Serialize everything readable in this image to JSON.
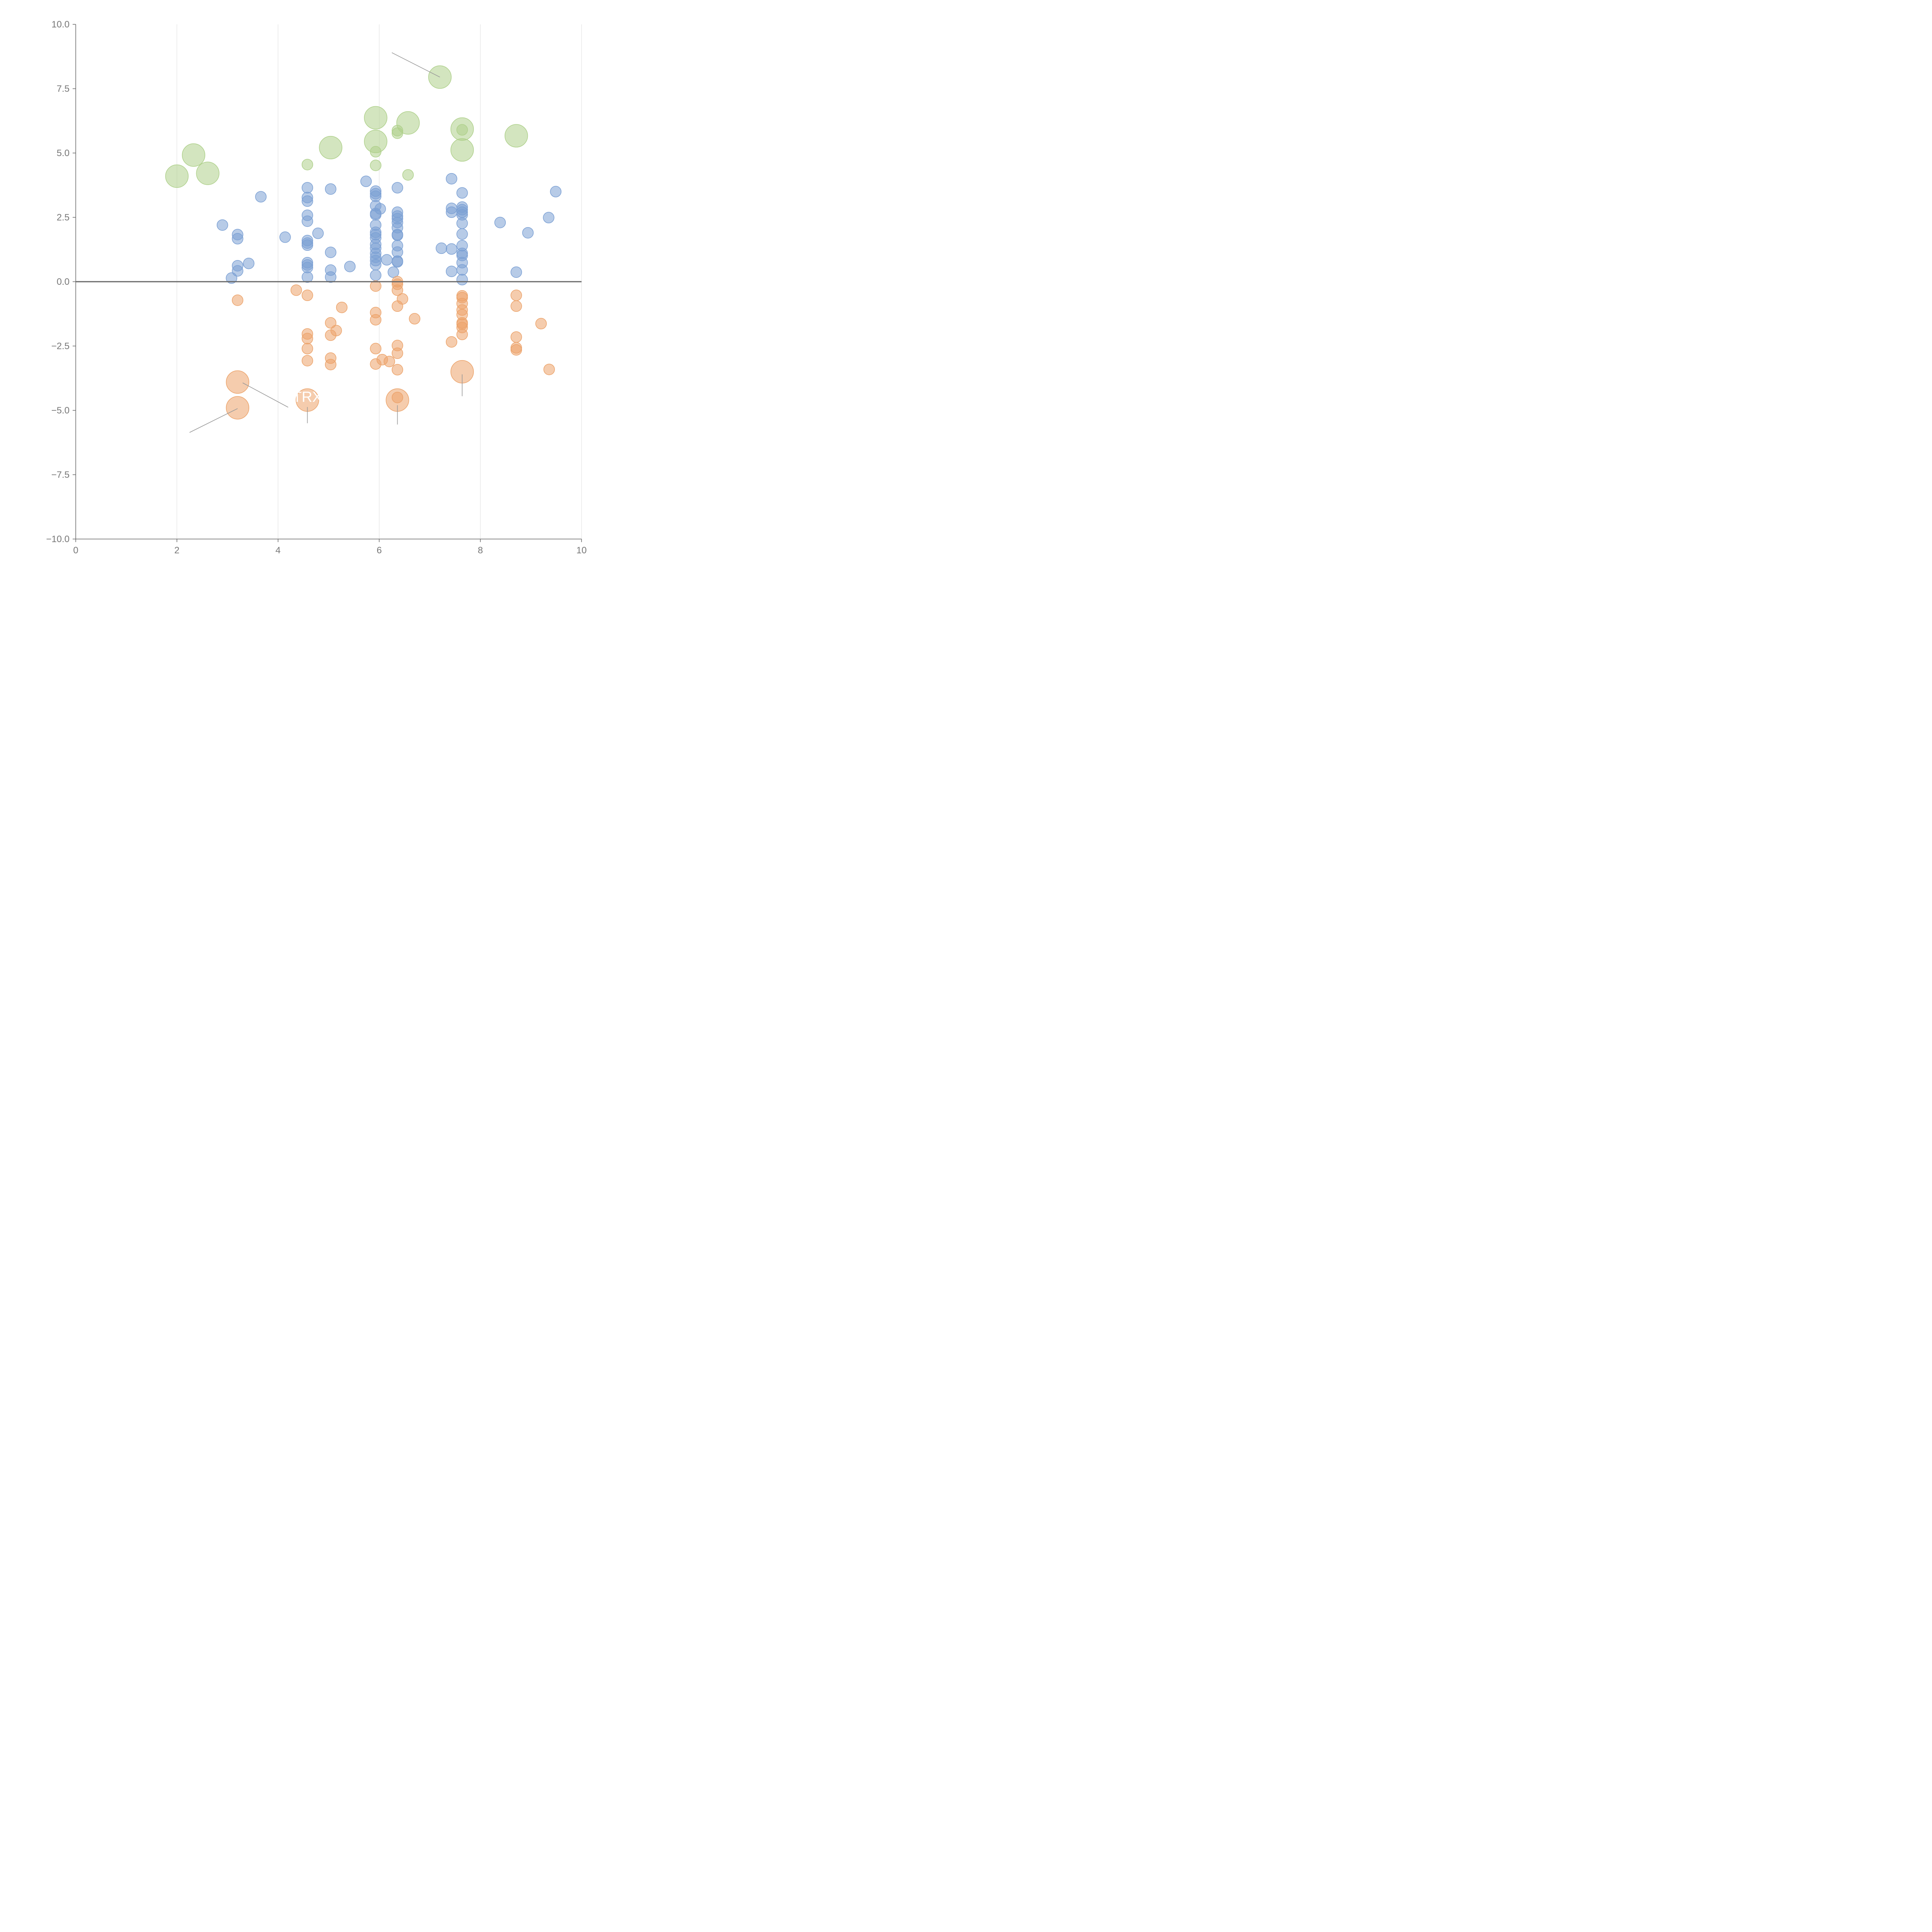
{
  "chart_data": {
    "type": "scatter",
    "title": "",
    "xlabel": "",
    "ylabel": "",
    "xlim": [
      0,
      10
    ],
    "ylim": [
      -10,
      10
    ],
    "x_ticks": [
      0,
      2,
      4,
      6,
      8,
      10
    ],
    "x_tick_labels": [
      "0",
      "2",
      "4",
      "6",
      "8",
      "10"
    ],
    "y_ticks": [
      -10,
      -7.5,
      -5,
      -2.5,
      0,
      2.5,
      5,
      7.5,
      10
    ],
    "y_tick_labels": [
      "−10.0",
      "−7.5",
      "−5.0",
      "−2.5",
      "0.0",
      "2.5",
      "5.0",
      "7.5",
      "10.0"
    ],
    "grid": "vertical",
    "zero_line": true,
    "colors": {
      "blue": "#7ba0d4",
      "orange": "#eca36a",
      "green": "#aed08a",
      "axis": "#666666",
      "grid": "#dddddd",
      "leader": "#999999"
    },
    "series": [
      {
        "color": "blue",
        "points": [
          {
            "x": 2.9,
            "y": 2.2,
            "s": 1
          },
          {
            "x": 3.2,
            "y": 1.83,
            "s": 1
          },
          {
            "x": 3.2,
            "y": 1.67,
            "s": 1
          },
          {
            "x": 3.2,
            "y": 0.62,
            "s": 1
          },
          {
            "x": 3.2,
            "y": 0.42,
            "s": 1
          },
          {
            "x": 3.08,
            "y": 0.14,
            "s": 1
          },
          {
            "x": 3.42,
            "y": 0.71,
            "s": 1
          },
          {
            "x": 3.66,
            "y": 3.3,
            "s": 1
          },
          {
            "x": 4.14,
            "y": 1.73,
            "s": 1
          },
          {
            "x": 4.58,
            "y": 3.65,
            "s": 1
          },
          {
            "x": 4.58,
            "y": 3.27,
            "s": 1
          },
          {
            "x": 4.58,
            "y": 3.13,
            "s": 1
          },
          {
            "x": 4.58,
            "y": 2.58,
            "s": 1
          },
          {
            "x": 4.58,
            "y": 2.35,
            "s": 1
          },
          {
            "x": 4.58,
            "y": 1.6,
            "s": 1
          },
          {
            "x": 4.58,
            "y": 1.5,
            "s": 1
          },
          {
            "x": 4.58,
            "y": 1.42,
            "s": 1
          },
          {
            "x": 4.58,
            "y": 0.74,
            "s": 1
          },
          {
            "x": 4.58,
            "y": 0.65,
            "s": 1
          },
          {
            "x": 4.58,
            "y": 0.55,
            "s": 1
          },
          {
            "x": 4.58,
            "y": 0.18,
            "s": 1
          },
          {
            "x": 4.79,
            "y": 1.88,
            "s": 1
          },
          {
            "x": 5.04,
            "y": 3.6,
            "s": 1
          },
          {
            "x": 5.04,
            "y": 1.14,
            "s": 1
          },
          {
            "x": 5.04,
            "y": 0.45,
            "s": 1
          },
          {
            "x": 5.04,
            "y": 0.18,
            "s": 1
          },
          {
            "x": 5.42,
            "y": 0.59,
            "s": 1
          },
          {
            "x": 5.74,
            "y": 3.9,
            "s": 1
          },
          {
            "x": 5.93,
            "y": 3.52,
            "s": 1
          },
          {
            "x": 5.93,
            "y": 3.42,
            "s": 1
          },
          {
            "x": 5.93,
            "y": 3.32,
            "s": 1
          },
          {
            "x": 5.93,
            "y": 2.95,
            "s": 1
          },
          {
            "x": 5.93,
            "y": 2.65,
            "s": 1
          },
          {
            "x": 5.93,
            "y": 2.6,
            "s": 1
          },
          {
            "x": 5.93,
            "y": 2.2,
            "s": 1
          },
          {
            "x": 5.93,
            "y": 1.92,
            "s": 1
          },
          {
            "x": 5.93,
            "y": 1.83,
            "s": 1
          },
          {
            "x": 5.93,
            "y": 1.7,
            "s": 1
          },
          {
            "x": 5.93,
            "y": 1.45,
            "s": 1
          },
          {
            "x": 5.93,
            "y": 1.3,
            "s": 1
          },
          {
            "x": 5.93,
            "y": 1.1,
            "s": 1
          },
          {
            "x": 5.93,
            "y": 0.95,
            "s": 1
          },
          {
            "x": 5.93,
            "y": 0.82,
            "s": 1
          },
          {
            "x": 5.93,
            "y": 0.66,
            "s": 1
          },
          {
            "x": 5.93,
            "y": 0.25,
            "s": 1
          },
          {
            "x": 6.02,
            "y": 2.83,
            "s": 1
          },
          {
            "x": 6.15,
            "y": 0.85,
            "s": 1
          },
          {
            "x": 6.28,
            "y": 0.37,
            "s": 1
          },
          {
            "x": 6.36,
            "y": 3.65,
            "s": 1
          },
          {
            "x": 6.36,
            "y": 2.7,
            "s": 1
          },
          {
            "x": 6.36,
            "y": 2.55,
            "s": 1
          },
          {
            "x": 6.36,
            "y": 2.45,
            "s": 1
          },
          {
            "x": 6.36,
            "y": 2.3,
            "s": 1
          },
          {
            "x": 6.36,
            "y": 2.1,
            "s": 1
          },
          {
            "x": 6.36,
            "y": 1.83,
            "s": 1
          },
          {
            "x": 6.36,
            "y": 1.8,
            "s": 1
          },
          {
            "x": 6.36,
            "y": 1.4,
            "s": 1
          },
          {
            "x": 6.36,
            "y": 1.15,
            "s": 1
          },
          {
            "x": 6.36,
            "y": 0.8,
            "s": 1
          },
          {
            "x": 6.36,
            "y": 0.77,
            "s": 1
          },
          {
            "x": 7.23,
            "y": 1.3,
            "s": 1
          },
          {
            "x": 7.43,
            "y": 2.85,
            "s": 1
          },
          {
            "x": 7.43,
            "y": 2.7,
            "s": 1
          },
          {
            "x": 7.43,
            "y": 1.27,
            "s": 1
          },
          {
            "x": 7.43,
            "y": 0.4,
            "s": 1
          },
          {
            "x": 7.43,
            "y": 4.0,
            "s": 1
          },
          {
            "x": 7.64,
            "y": 3.45,
            "s": 1
          },
          {
            "x": 7.64,
            "y": 2.9,
            "s": 1
          },
          {
            "x": 7.64,
            "y": 2.8,
            "s": 1
          },
          {
            "x": 7.64,
            "y": 2.7,
            "s": 1
          },
          {
            "x": 7.64,
            "y": 2.6,
            "s": 1
          },
          {
            "x": 7.64,
            "y": 2.27,
            "s": 1
          },
          {
            "x": 7.64,
            "y": 1.85,
            "s": 1
          },
          {
            "x": 7.64,
            "y": 1.4,
            "s": 1
          },
          {
            "x": 7.64,
            "y": 1.1,
            "s": 1
          },
          {
            "x": 7.64,
            "y": 1.02,
            "s": 1
          },
          {
            "x": 7.64,
            "y": 0.74,
            "s": 1
          },
          {
            "x": 7.64,
            "y": 0.46,
            "s": 1
          },
          {
            "x": 7.64,
            "y": 0.08,
            "s": 1
          },
          {
            "x": 8.39,
            "y": 2.3,
            "s": 1
          },
          {
            "x": 8.71,
            "y": 0.37,
            "s": 1
          },
          {
            "x": 8.94,
            "y": 1.9,
            "s": 1
          },
          {
            "x": 9.35,
            "y": 2.49,
            "s": 1
          },
          {
            "x": 9.49,
            "y": 3.5,
            "s": 1
          }
        ]
      },
      {
        "color": "orange",
        "points": [
          {
            "x": 3.2,
            "y": -0.72,
            "s": 1
          },
          {
            "x": 4.36,
            "y": -0.33,
            "s": 1
          },
          {
            "x": 4.58,
            "y": -0.53,
            "s": 1
          },
          {
            "x": 4.58,
            "y": -2.03,
            "s": 1
          },
          {
            "x": 4.58,
            "y": -2.21,
            "s": 1
          },
          {
            "x": 4.58,
            "y": -2.6,
            "s": 1
          },
          {
            "x": 4.58,
            "y": -3.07,
            "s": 1
          },
          {
            "x": 5.04,
            "y": -1.6,
            "s": 1
          },
          {
            "x": 5.04,
            "y": -2.08,
            "s": 1
          },
          {
            "x": 5.04,
            "y": -2.97,
            "s": 1
          },
          {
            "x": 5.04,
            "y": -3.22,
            "s": 1
          },
          {
            "x": 5.15,
            "y": -1.9,
            "s": 1
          },
          {
            "x": 5.26,
            "y": -1.0,
            "s": 1
          },
          {
            "x": 5.93,
            "y": -0.17,
            "s": 1
          },
          {
            "x": 5.93,
            "y": -1.2,
            "s": 1
          },
          {
            "x": 5.93,
            "y": -1.48,
            "s": 1
          },
          {
            "x": 5.93,
            "y": -2.6,
            "s": 1
          },
          {
            "x": 5.93,
            "y": -3.2,
            "s": 1
          },
          {
            "x": 6.06,
            "y": -3.03,
            "s": 1
          },
          {
            "x": 6.2,
            "y": -3.1,
            "s": 1
          },
          {
            "x": 6.36,
            "y": 0.0,
            "s": 1
          },
          {
            "x": 6.36,
            "y": -0.1,
            "s": 1
          },
          {
            "x": 6.36,
            "y": -0.33,
            "s": 1
          },
          {
            "x": 6.36,
            "y": -0.95,
            "s": 1
          },
          {
            "x": 6.36,
            "y": -2.48,
            "s": 1
          },
          {
            "x": 6.36,
            "y": -2.78,
            "s": 1
          },
          {
            "x": 6.36,
            "y": -3.42,
            "s": 1
          },
          {
            "x": 6.36,
            "y": -4.5,
            "s": 1
          },
          {
            "x": 6.46,
            "y": -0.67,
            "s": 1
          },
          {
            "x": 6.7,
            "y": -1.44,
            "s": 1
          },
          {
            "x": 7.43,
            "y": -2.34,
            "s": 1
          },
          {
            "x": 7.64,
            "y": -0.55,
            "s": 1
          },
          {
            "x": 7.64,
            "y": -0.62,
            "s": 1
          },
          {
            "x": 7.64,
            "y": -0.85,
            "s": 1
          },
          {
            "x": 7.64,
            "y": -1.1,
            "s": 1
          },
          {
            "x": 7.64,
            "y": -1.28,
            "s": 1
          },
          {
            "x": 7.64,
            "y": -1.6,
            "s": 1
          },
          {
            "x": 7.64,
            "y": -1.65,
            "s": 1
          },
          {
            "x": 7.64,
            "y": -1.78,
            "s": 1
          },
          {
            "x": 7.64,
            "y": -2.05,
            "s": 1
          },
          {
            "x": 8.71,
            "y": -0.53,
            "s": 1
          },
          {
            "x": 8.71,
            "y": -0.95,
            "s": 1
          },
          {
            "x": 8.71,
            "y": -2.15,
            "s": 1
          },
          {
            "x": 8.71,
            "y": -2.57,
            "s": 1
          },
          {
            "x": 8.71,
            "y": -2.65,
            "s": 1
          },
          {
            "x": 9.2,
            "y": -1.63,
            "s": 1
          },
          {
            "x": 9.36,
            "y": -3.41,
            "s": 1
          },
          {
            "x": 3.2,
            "y": -3.9,
            "s": 2.1
          },
          {
            "x": 3.2,
            "y": -4.9,
            "s": 2.1
          },
          {
            "x": 4.58,
            "y": -4.6,
            "s": 2.1
          },
          {
            "x": 6.36,
            "y": -4.6,
            "s": 2.1
          },
          {
            "x": 7.64,
            "y": -3.5,
            "s": 2.1
          }
        ]
      },
      {
        "color": "green",
        "points": [
          {
            "x": 4.58,
            "y": 4.55,
            "s": 1
          },
          {
            "x": 5.93,
            "y": 5.05,
            "s": 1
          },
          {
            "x": 5.93,
            "y": 4.52,
            "s": 1
          },
          {
            "x": 6.36,
            "y": 5.87,
            "s": 1
          },
          {
            "x": 6.36,
            "y": 5.77,
            "s": 1
          },
          {
            "x": 6.57,
            "y": 4.15,
            "s": 1
          },
          {
            "x": 7.64,
            "y": 5.9,
            "s": 1
          },
          {
            "x": 2.0,
            "y": 4.1,
            "s": 2.1
          },
          {
            "x": 2.33,
            "y": 4.92,
            "s": 2.1
          },
          {
            "x": 2.61,
            "y": 4.21,
            "s": 2.1
          },
          {
            "x": 5.04,
            "y": 5.21,
            "s": 2.1
          },
          {
            "x": 5.93,
            "y": 6.37,
            "s": 2.1
          },
          {
            "x": 5.93,
            "y": 5.45,
            "s": 2.1
          },
          {
            "x": 6.57,
            "y": 6.17,
            "s": 2.1
          },
          {
            "x": 7.2,
            "y": 7.95,
            "s": 2.1
          },
          {
            "x": 7.64,
            "y": 5.93,
            "s": 2.1
          },
          {
            "x": 7.64,
            "y": 5.12,
            "s": 2.1
          },
          {
            "x": 8.71,
            "y": 5.67,
            "s": 2.1
          }
        ]
      }
    ],
    "leader_lines": [
      {
        "from": [
          6.25,
          8.9
        ],
        "to": [
          7.2,
          7.95
        ]
      },
      {
        "from": [
          3.3,
          -3.93
        ],
        "to": [
          4.2,
          -4.88
        ]
      },
      {
        "from": [
          3.2,
          -4.93
        ],
        "to": [
          2.25,
          -5.86
        ]
      },
      {
        "from": [
          4.58,
          -4.87
        ],
        "to": [
          4.58,
          -5.5
        ]
      },
      {
        "from": [
          6.36,
          -4.8
        ],
        "to": [
          6.36,
          -5.55
        ]
      },
      {
        "from": [
          7.64,
          -3.6
        ],
        "to": [
          7.64,
          -4.45
        ]
      }
    ],
    "point_labels": [
      {
        "text": "TRX",
        "x": 4.58,
        "y": -4.67
      }
    ]
  }
}
